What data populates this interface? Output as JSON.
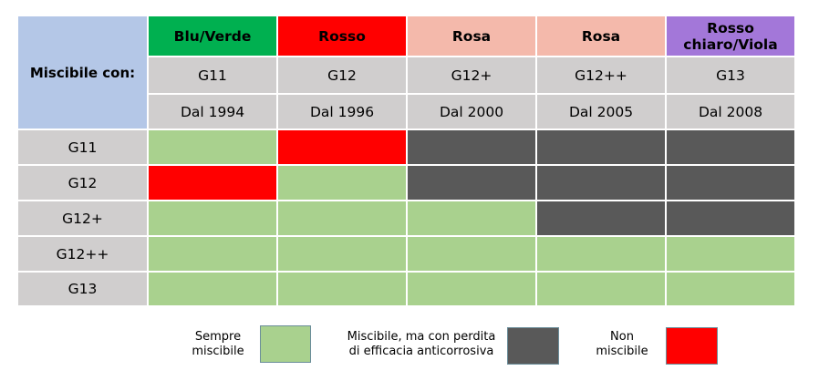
{
  "corner_label": "Miscibile con:",
  "colors": {
    "green": "#a9d18e",
    "red": "#ff0000",
    "dark": "#595959",
    "blue_green_header": "#00b050",
    "red_header": "#ff0000",
    "pink_header": "#f4b9ab",
    "purple_header": "#a377d9",
    "grey": "#d0cece",
    "corner": "#b4c7e7"
  },
  "columns": [
    {
      "color_name": "Blu/Verde",
      "code": "G11",
      "since": "Dal 1994",
      "header_color": "#00b050"
    },
    {
      "color_name": "Rosso",
      "code": "G12",
      "since": "Dal 1996",
      "header_color": "#ff0000"
    },
    {
      "color_name": "Rosa",
      "code": "G12+",
      "since": "Dal 2000",
      "header_color": "#f4b9ab"
    },
    {
      "color_name": "Rosa",
      "code": "G12++",
      "since": "Dal 2005",
      "header_color": "#f4b9ab"
    },
    {
      "color_name": "Rosso chiaro/Viola",
      "code": "G13",
      "since": "Dal 2008",
      "header_color": "#a377d9"
    }
  ],
  "rows": [
    {
      "label": "G11",
      "cells": [
        "green",
        "red",
        "dark",
        "dark",
        "dark"
      ]
    },
    {
      "label": "G12",
      "cells": [
        "red",
        "green",
        "dark",
        "dark",
        "dark"
      ]
    },
    {
      "label": "G12+",
      "cells": [
        "green",
        "green",
        "green",
        "dark",
        "dark"
      ]
    },
    {
      "label": "G12++",
      "cells": [
        "green",
        "green",
        "green",
        "green",
        "green"
      ]
    },
    {
      "label": "G13",
      "cells": [
        "green",
        "green",
        "green",
        "green",
        "green"
      ]
    }
  ],
  "legend": {
    "always": "Sempre miscibile",
    "loss": "Miscibile, ma con perdita di efficacia anticorrosiva",
    "not": "Non miscibile"
  }
}
